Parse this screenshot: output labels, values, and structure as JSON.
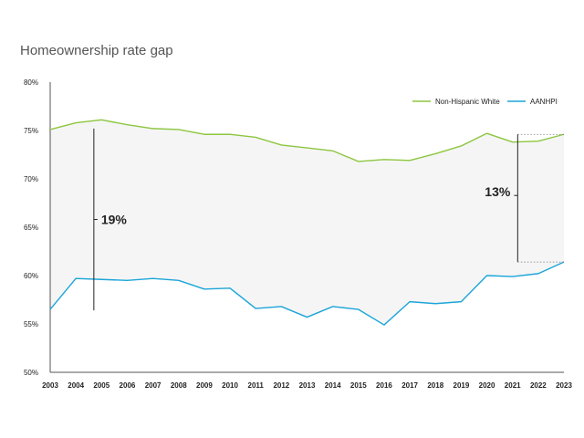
{
  "chart_data": {
    "type": "line",
    "title": "Homeownership rate gap",
    "xlabel": "",
    "ylabel": "",
    "ylim": [
      50,
      80
    ],
    "y_ticks": [
      "50%",
      "55%",
      "60%",
      "65%",
      "70%",
      "75%",
      "80%"
    ],
    "x": [
      "2003",
      "2004",
      "2005",
      "2006",
      "2007",
      "2008",
      "2009",
      "2010",
      "2011",
      "2012",
      "2013",
      "2014",
      "2015",
      "2016",
      "2017",
      "2018",
      "2019",
      "2020",
      "2021",
      "2022",
      "2023"
    ],
    "series": [
      {
        "name": "Non-Hispanic White",
        "color": "#8dc63f",
        "values": [
          75.1,
          75.8,
          76.1,
          75.6,
          75.2,
          75.1,
          74.6,
          74.6,
          74.3,
          73.5,
          73.2,
          72.9,
          71.8,
          72.0,
          71.9,
          72.6,
          73.4,
          74.7,
          73.8,
          73.9,
          74.6
        ]
      },
      {
        "name": "AANHPI",
        "color": "#1ba5d8",
        "values": [
          56.5,
          59.7,
          59.6,
          59.5,
          59.7,
          59.5,
          58.6,
          58.7,
          56.6,
          56.8,
          55.7,
          56.8,
          56.5,
          54.9,
          57.3,
          57.1,
          57.3,
          60.0,
          59.9,
          60.2,
          61.4
        ]
      }
    ],
    "shading": "between series",
    "shade_color": "#f5f5f5",
    "grid": false,
    "legend_position": "top-right",
    "annotations": [
      {
        "label": "19%",
        "x": 2004.7,
        "y_from": 75.2,
        "y_to": 56.4,
        "style": "solid",
        "label_side": "right"
      },
      {
        "label": "13%",
        "x": 2021.2,
        "y_from": 74.6,
        "y_to": 61.4,
        "style": "bracket-dotted",
        "label_side": "left"
      }
    ]
  }
}
